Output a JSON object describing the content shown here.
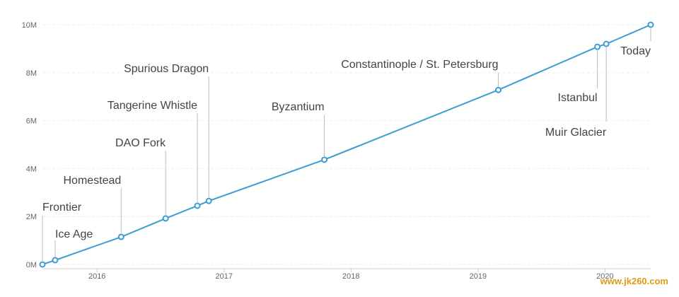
{
  "chart_data": {
    "type": "line",
    "x": [
      2015.57,
      2015.67,
      2016.19,
      2016.54,
      2016.79,
      2016.88,
      2017.79,
      2019.16,
      2019.94,
      2020.01,
      2020.36
    ],
    "values": [
      0,
      0.18,
      1.15,
      1.92,
      2.45,
      2.65,
      4.37,
      7.28,
      9.08,
      9.2,
      10
    ],
    "point_labels": [
      "Frontier",
      "Ice Age",
      "Homestead",
      "DAO Fork",
      "Tangerine Whistle",
      "Spurious Dragon",
      "Byzantium",
      "Constantinople / St. Petersburg",
      "Istanbul",
      "Muir Glacier",
      "Today"
    ],
    "color": "#3d9bd3",
    "xlim": [
      2015.57,
      2020.36
    ],
    "xticks": [
      2016,
      2017,
      2018,
      2019,
      2020
    ],
    "ylim": [
      0,
      10
    ],
    "yticks": [
      {
        "value": 0,
        "label": "0M"
      },
      {
        "value": 2,
        "label": "2M"
      },
      {
        "value": 4,
        "label": "4M"
      },
      {
        "value": 6,
        "label": "6M"
      },
      {
        "value": 8,
        "label": "8M"
      },
      {
        "value": 10,
        "label": "10M"
      }
    ],
    "grid": true,
    "watermark": "www.jk260.com"
  }
}
